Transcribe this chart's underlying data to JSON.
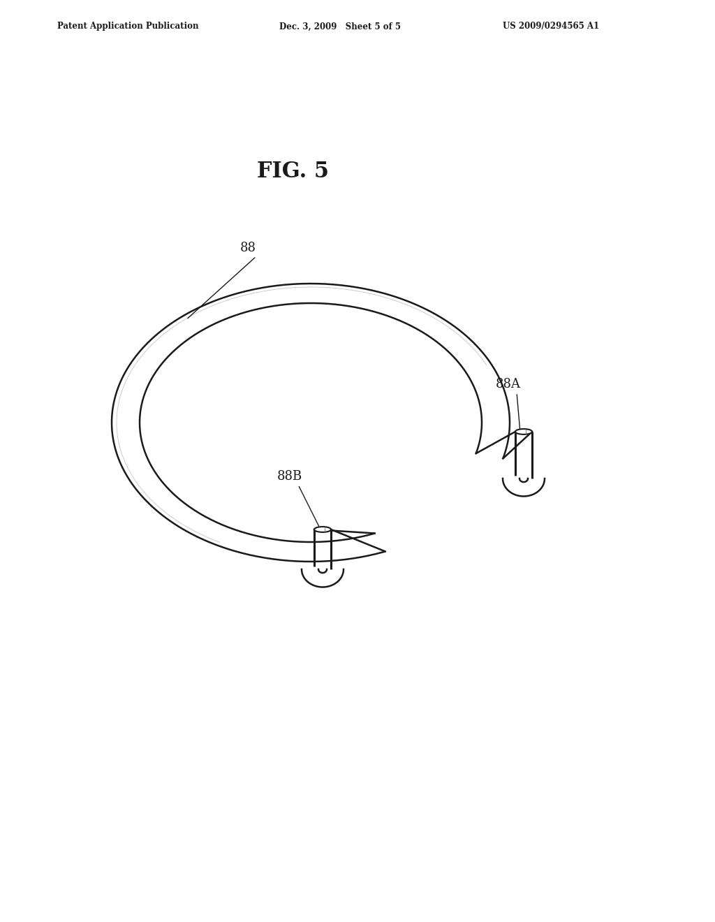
{
  "bg_color": "#ffffff",
  "line_color": "#1a1a1a",
  "header_left": "Patent Application Publication",
  "header_mid": "Dec. 3, 2009   Sheet 5 of 5",
  "header_right": "US 2009/0294565 A1",
  "fig_label": "FIG. 5",
  "label_88": "88",
  "label_88A": "88A",
  "label_88B": "88B",
  "ring_lw": 1.8,
  "hook_lw": 2.2
}
